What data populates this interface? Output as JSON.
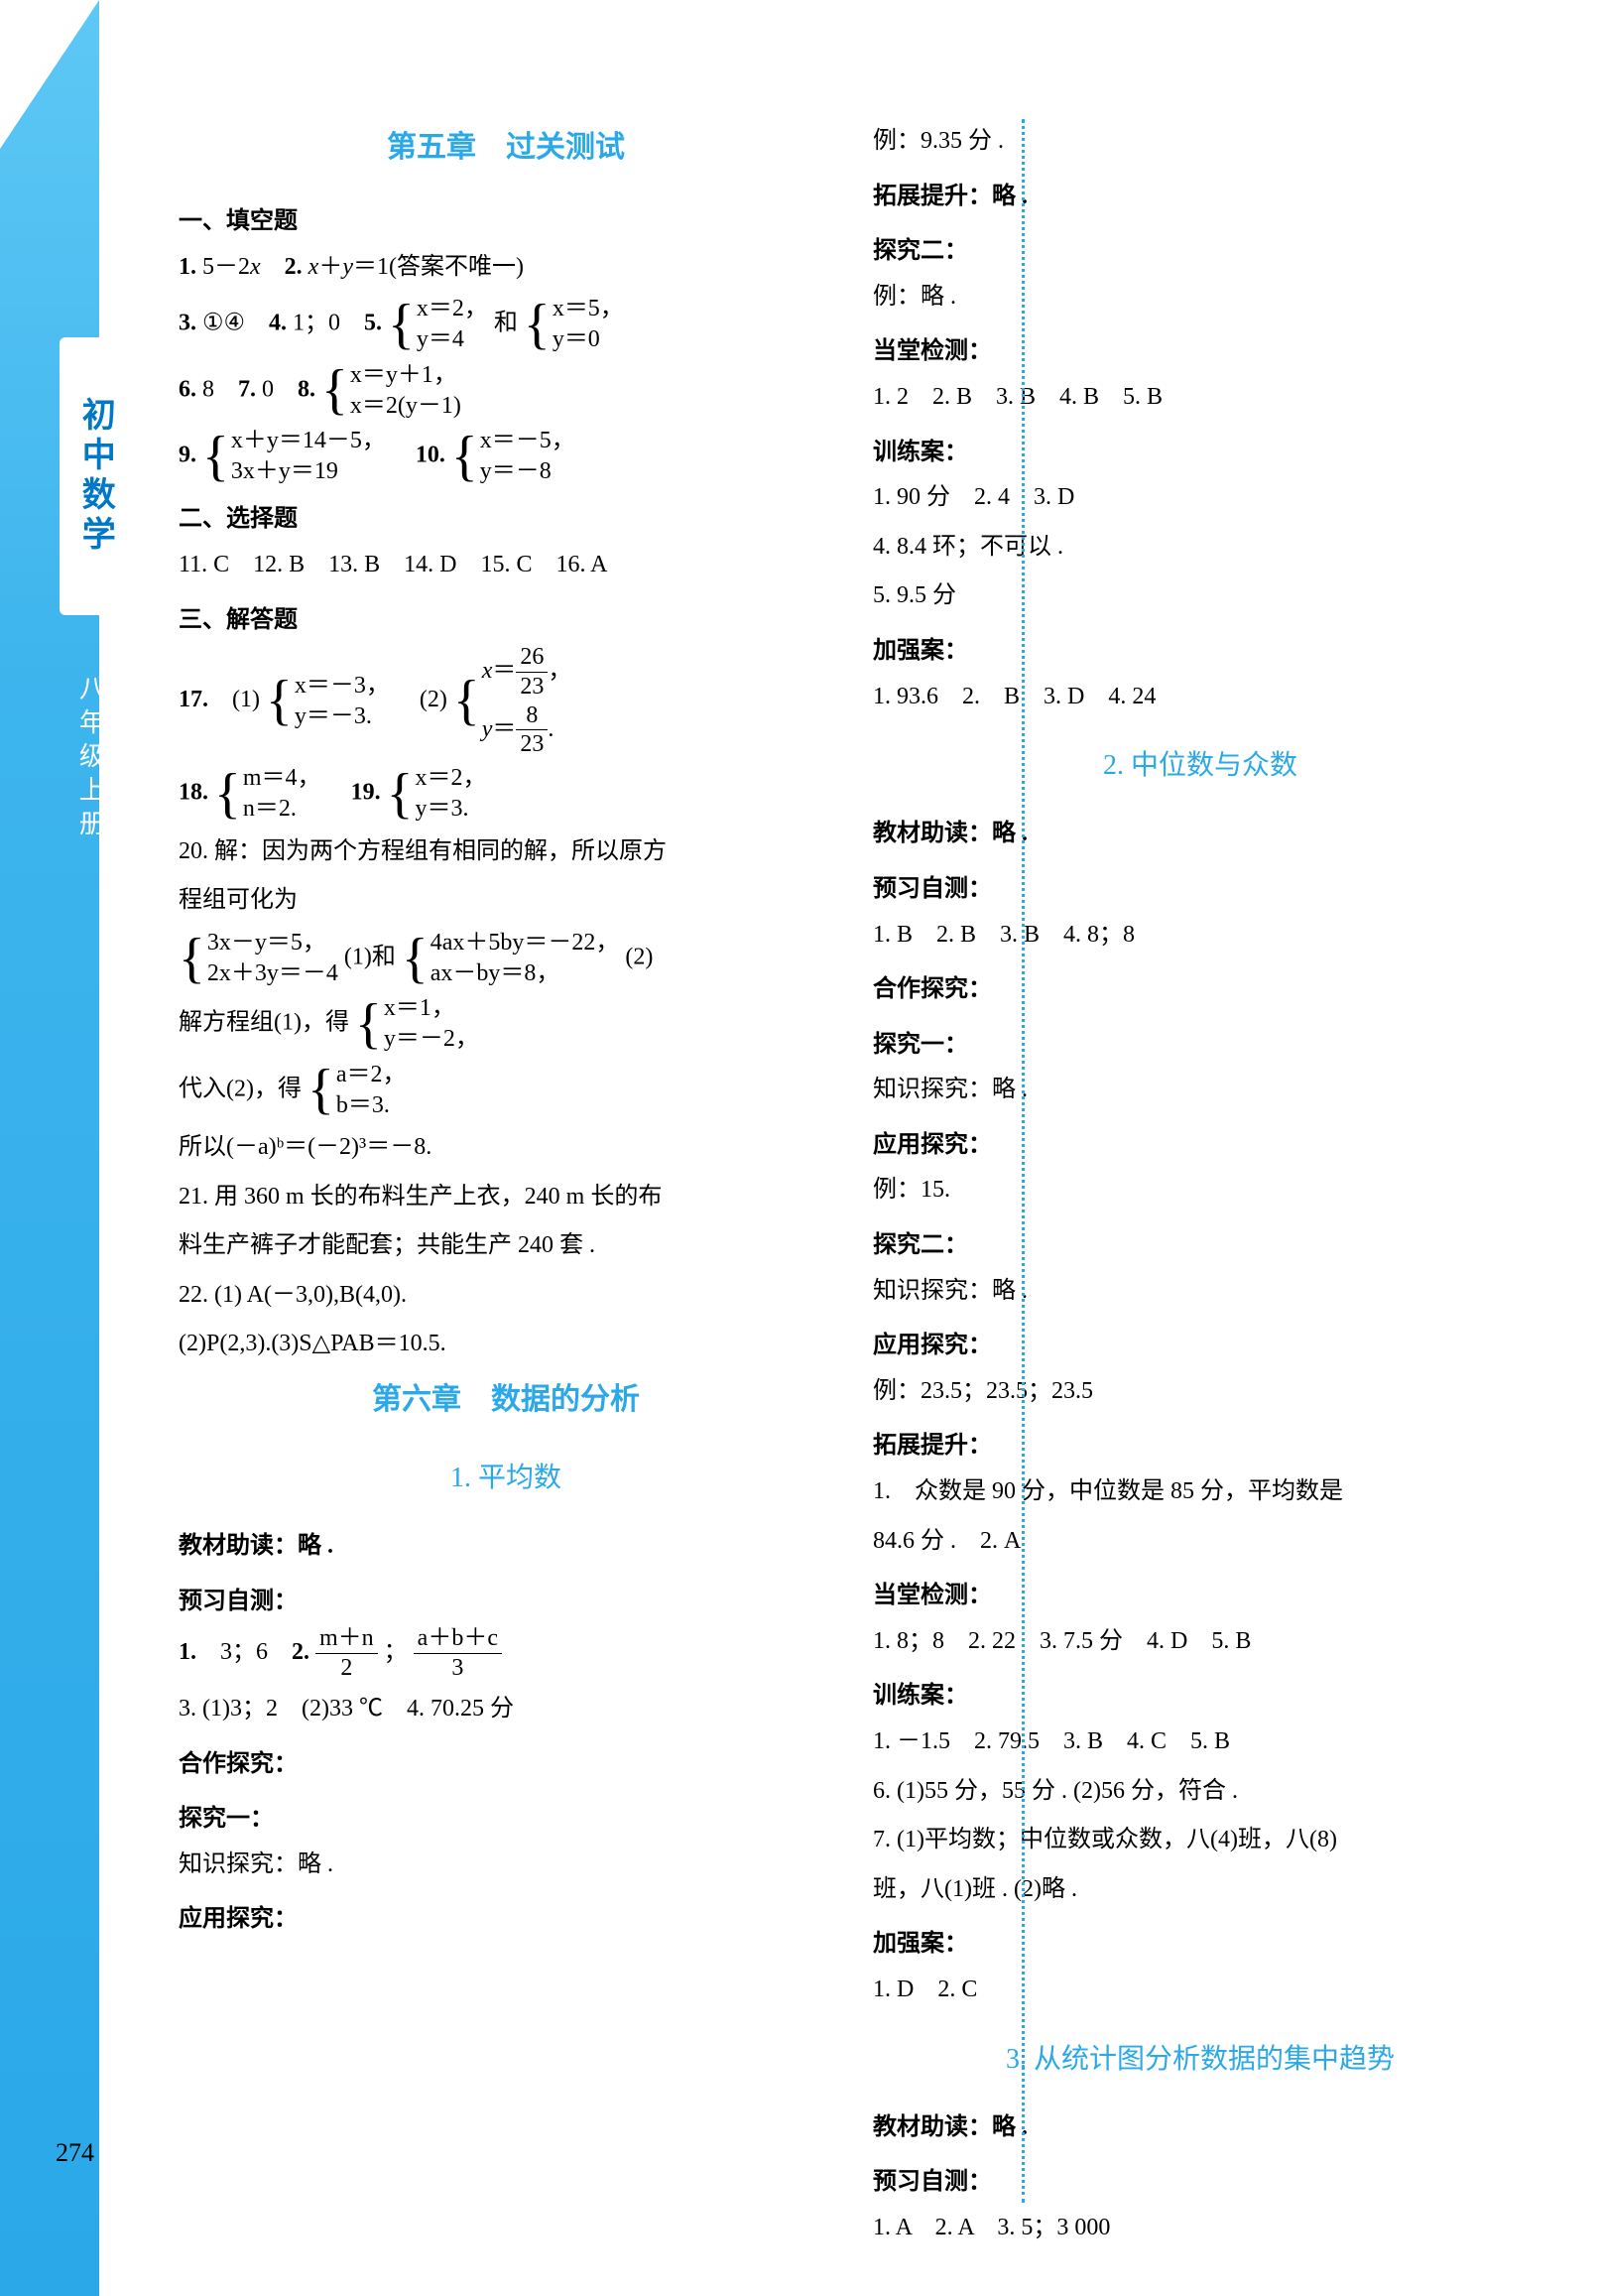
{
  "page": {
    "subject": "初中数学",
    "grade": "八年级上册",
    "page_number": "274"
  },
  "colors": {
    "accent": "#2aa8e8",
    "edge_gradient_top": "#5ec8f5",
    "edge_gradient_bottom": "#2aa8e8",
    "text": "#000000",
    "bg": "#ffffff"
  },
  "left_col": {
    "chapter": "第五章　过关测试",
    "sec1": "一、填空题",
    "q1": "1. 5－2x　2. x＋y＝1(答案不唯一)",
    "q3a": "3. ①④　4. 1；0　5. ",
    "q5sys1_r1": "x＝2，",
    "q5sys1_r2": "y＝4",
    "q5mid": "和",
    "q5sys2_r1": "x＝5，",
    "q5sys2_r2": "y＝0",
    "q6": "6. 8　7. 0　8. ",
    "q8_r1": "x＝y＋1，",
    "q8_r2": "x＝2(y－1)",
    "q9": "9. ",
    "q9_r1": "x＋y＝14－5，",
    "q9_r2": "3x＋y＝19",
    "q10": "10. ",
    "q10_r1": "x＝－5，",
    "q10_r2": "y＝－8",
    "sec2": "二、选择题",
    "q11_16": "11. C　12. B　13. B　14. D　15. C　16. A",
    "sec3": "三、解答题",
    "q17": "17.　(1)",
    "q17a_r1": "x＝－3，",
    "q17a_r2": "y＝－3.",
    "q17_2": "(2)",
    "q17b_r1_num": "26",
    "q17b_r1_den": "23",
    "q17b_r2_num": "8",
    "q17b_r2_den": "23",
    "q18": "18. ",
    "q18_r1": "m＝4，",
    "q18_r2": "n＝2.",
    "q19": "　19. ",
    "q19_r1": "x＝2，",
    "q19_r2": "y＝3.",
    "q20_a": "20. 解：因为两个方程组有相同的解，所以原方",
    "q20_b": "程组可化为",
    "q20_sys1_r1": "3x－y＝5，",
    "q20_sys1_r2": "2x＋3y＝－4",
    "q20_mid1": "(1)和",
    "q20_sys2_r1": "4ax＋5by＝－22，",
    "q20_sys2_r2": "ax－by＝8，",
    "q20_tail": "(2)",
    "q20_c": "解方程组(1)，得",
    "q20_c_r1": "x＝1，",
    "q20_c_r2": "y＝－2，",
    "q20_d": "代入(2)，得",
    "q20_d_r1": "a＝2，",
    "q20_d_r2": "b＝3.",
    "q20_e": "所以(－a)ᵇ＝(－2)³＝－8.",
    "q21_a": "21. 用 360 m 长的布料生产上衣，240 m 长的布",
    "q21_b": "料生产裤子才能配套；共能生产 240 套 .",
    "q22_a": "22. (1) A(－3,0),B(4,0).",
    "q22_b": "(2)P(2,3).(3)S△PAB＝10.5.",
    "chapter6": "第六章　数据的分析",
    "sec6_1": "1. 平均数",
    "h_jczd": "教材助读：略 .",
    "h_yxzc": "预习自测：",
    "l1": "1.　3；6　2. ",
    "l1_f1_num": "m＋n",
    "l1_f1_den": "2",
    "l1_sep": "；",
    "l1_f2_num": "a＋b＋c",
    "l1_f2_den": "3",
    "l3": "3. (1)3；2　(2)33 ℃　4. 70.25 分",
    "h_hztj": "合作探究：",
    "h_tjy": "探究一：",
    "h_zstj": "知识探究：略 .",
    "h_yytj": "应用探究："
  },
  "right_col": {
    "r1": "例：9.35 分 .",
    "r2": "拓展提升：略 .",
    "r3": "探究二：",
    "r4": "例：略 .",
    "r5": "当堂检测：",
    "r6": "1. 2　2. B　3. B　4. B　5. B",
    "r7": "训练案：",
    "r8": "1. 90 分　2. 4　3. D",
    "r9": "4. 8.4 环；不可以 .",
    "r10": "5. 9.5 分",
    "r11": "加强案：",
    "r12": "1. 93.6　2.　B　3. D　4. 24",
    "sec6_2": "2. 中位数与众数",
    "r13": "教材助读：略 .",
    "r14": "预习自测：",
    "r15": "1. B　2. B　3. B　4. 8；8",
    "r16": "合作探究：",
    "r17": "探究一：",
    "r18": "知识探究：略 .",
    "r19": "应用探究：",
    "r20": "例：15.",
    "r21": "探究二：",
    "r22": "知识探究：略 .",
    "r23": "应用探究：",
    "r24": "例：23.5；23.5；23.5",
    "r25": "拓展提升：",
    "r26": "1.　众数是 90 分，中位数是 85 分，平均数是",
    "r27": "84.6 分 .　2. A",
    "r28": "当堂检测：",
    "r29": "1. 8；8　2. 22　3. 7.5 分　4. D　5. B",
    "r30": "训练案：",
    "r31": "1. －1.5　2. 79.5　3. B　4. C　5. B",
    "r32": "6. (1)55 分，55 分 . (2)56 分，符合 .",
    "r33": "7. (1)平均数；中位数或众数，八(4)班，八(8)",
    "r34": "班，八(1)班 . (2)略 .",
    "r35": "加强案：",
    "r36": "1. D　2. C",
    "sec6_3": "3. 从统计图分析数据的集中趋势",
    "r37": "教材助读：略 .",
    "r38": "预习自测：",
    "r39": "1. A　2. A　3. 5；3 000"
  }
}
